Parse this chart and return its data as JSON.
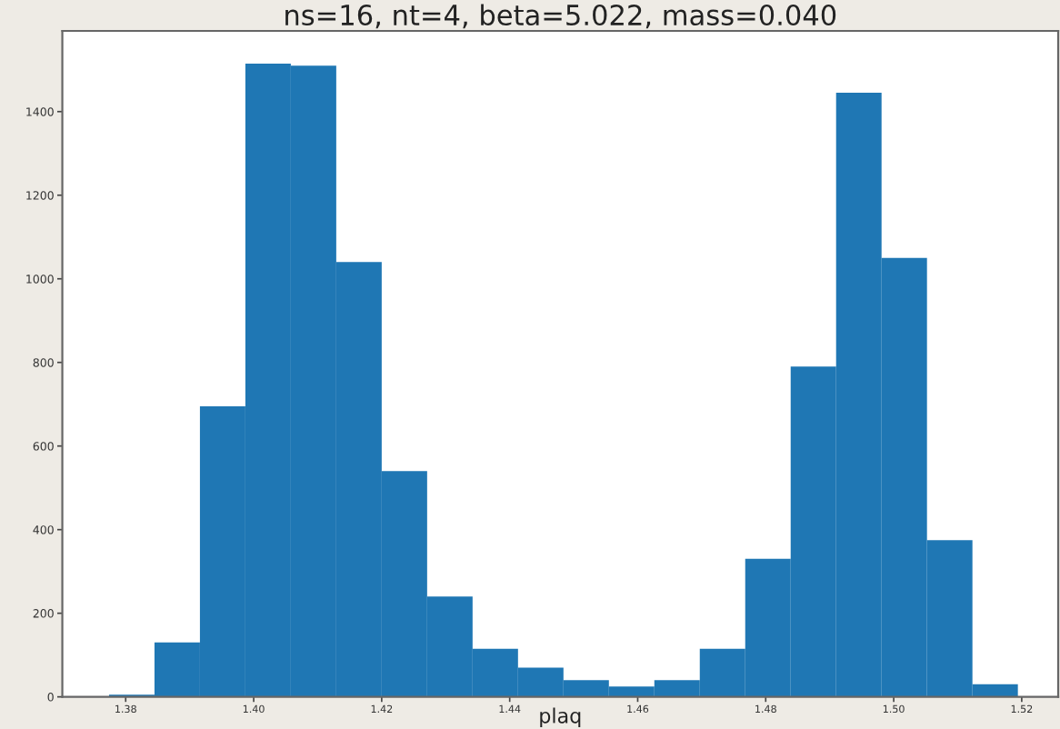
{
  "chart_data": {
    "type": "histogram",
    "title": "ns=16, nt=4, beta=5.022, mass=0.040",
    "xlabel": "plaq",
    "bins": [
      1.3774,
      1.3845,
      1.3916,
      1.3987,
      1.4058,
      1.4129,
      1.42,
      1.4271,
      1.4342,
      1.4413,
      1.4484,
      1.4555,
      1.4626,
      1.4697,
      1.4768,
      1.4839,
      1.491,
      1.4981,
      1.5052,
      1.5123,
      1.5194
    ],
    "values": [
      5,
      130,
      695,
      1515,
      1510,
      1040,
      540,
      240,
      115,
      70,
      40,
      25,
      40,
      115,
      330,
      790,
      1445,
      1050,
      375,
      30
    ],
    "color": "#1f77b4",
    "xlim": [
      1.3701,
      1.5257
    ],
    "xticks": [
      1.38,
      {
        "value": 1.4,
        "label": "1.40"
      },
      1.42,
      1.44,
      1.46,
      1.48,
      {
        "value": 1.5,
        "label": "1.50"
      },
      1.52
    ],
    "ylim": [
      0,
      1593
    ],
    "yticks": [
      0,
      200,
      400,
      600,
      800,
      1000,
      1200,
      1400
    ],
    "grid": false
  }
}
